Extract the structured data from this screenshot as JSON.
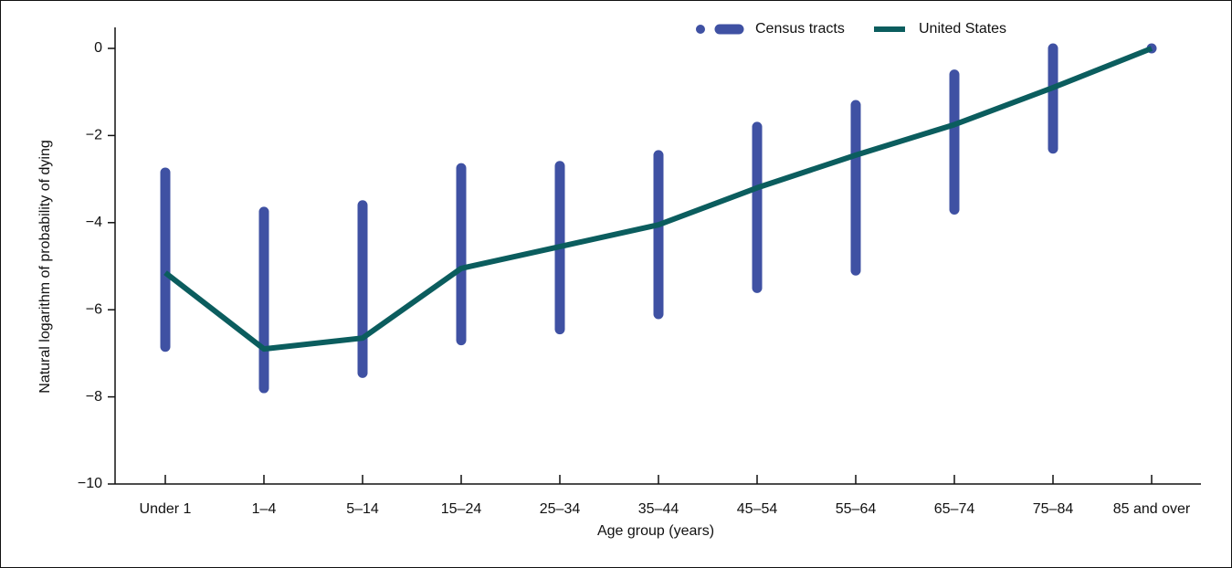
{
  "chart_data": {
    "type": "range_line",
    "x_label": "Age group (years)",
    "y_label": "Natural logarithm of probability of dying",
    "categories": [
      "Under 1",
      "1–4",
      "5–14",
      "15–24",
      "25–34",
      "35–44",
      "45–54",
      "55–64",
      "65–74",
      "75–84",
      "85 and over"
    ],
    "ylim": [
      -10,
      0.5
    ],
    "yticks": [
      {
        "value": -10,
        "label": "−10"
      },
      {
        "value": -8,
        "label": "−8"
      },
      {
        "value": -6,
        "label": "−6"
      },
      {
        "value": -4,
        "label": "−4"
      },
      {
        "value": -2,
        "label": "−2"
      },
      0
    ],
    "series": [
      {
        "name": "Census tracts",
        "color": "#3f51a3",
        "low": [
          -6.85,
          -7.8,
          -7.45,
          -6.7,
          -6.45,
          -6.1,
          -5.5,
          -5.1,
          -3.7,
          -2.3,
          0
        ],
        "high": [
          -2.85,
          -3.75,
          -3.6,
          -2.75,
          -2.7,
          -2.45,
          -1.8,
          -1.3,
          -0.6,
          0,
          0
        ]
      },
      {
        "name": "United States",
        "color": "#0b5d5e",
        "values": [
          -5.15,
          -6.9,
          -6.65,
          -5.05,
          -4.55,
          -4.05,
          -3.2,
          -2.45,
          -1.75,
          -0.9,
          0
        ]
      }
    ],
    "legend": "top-right"
  }
}
